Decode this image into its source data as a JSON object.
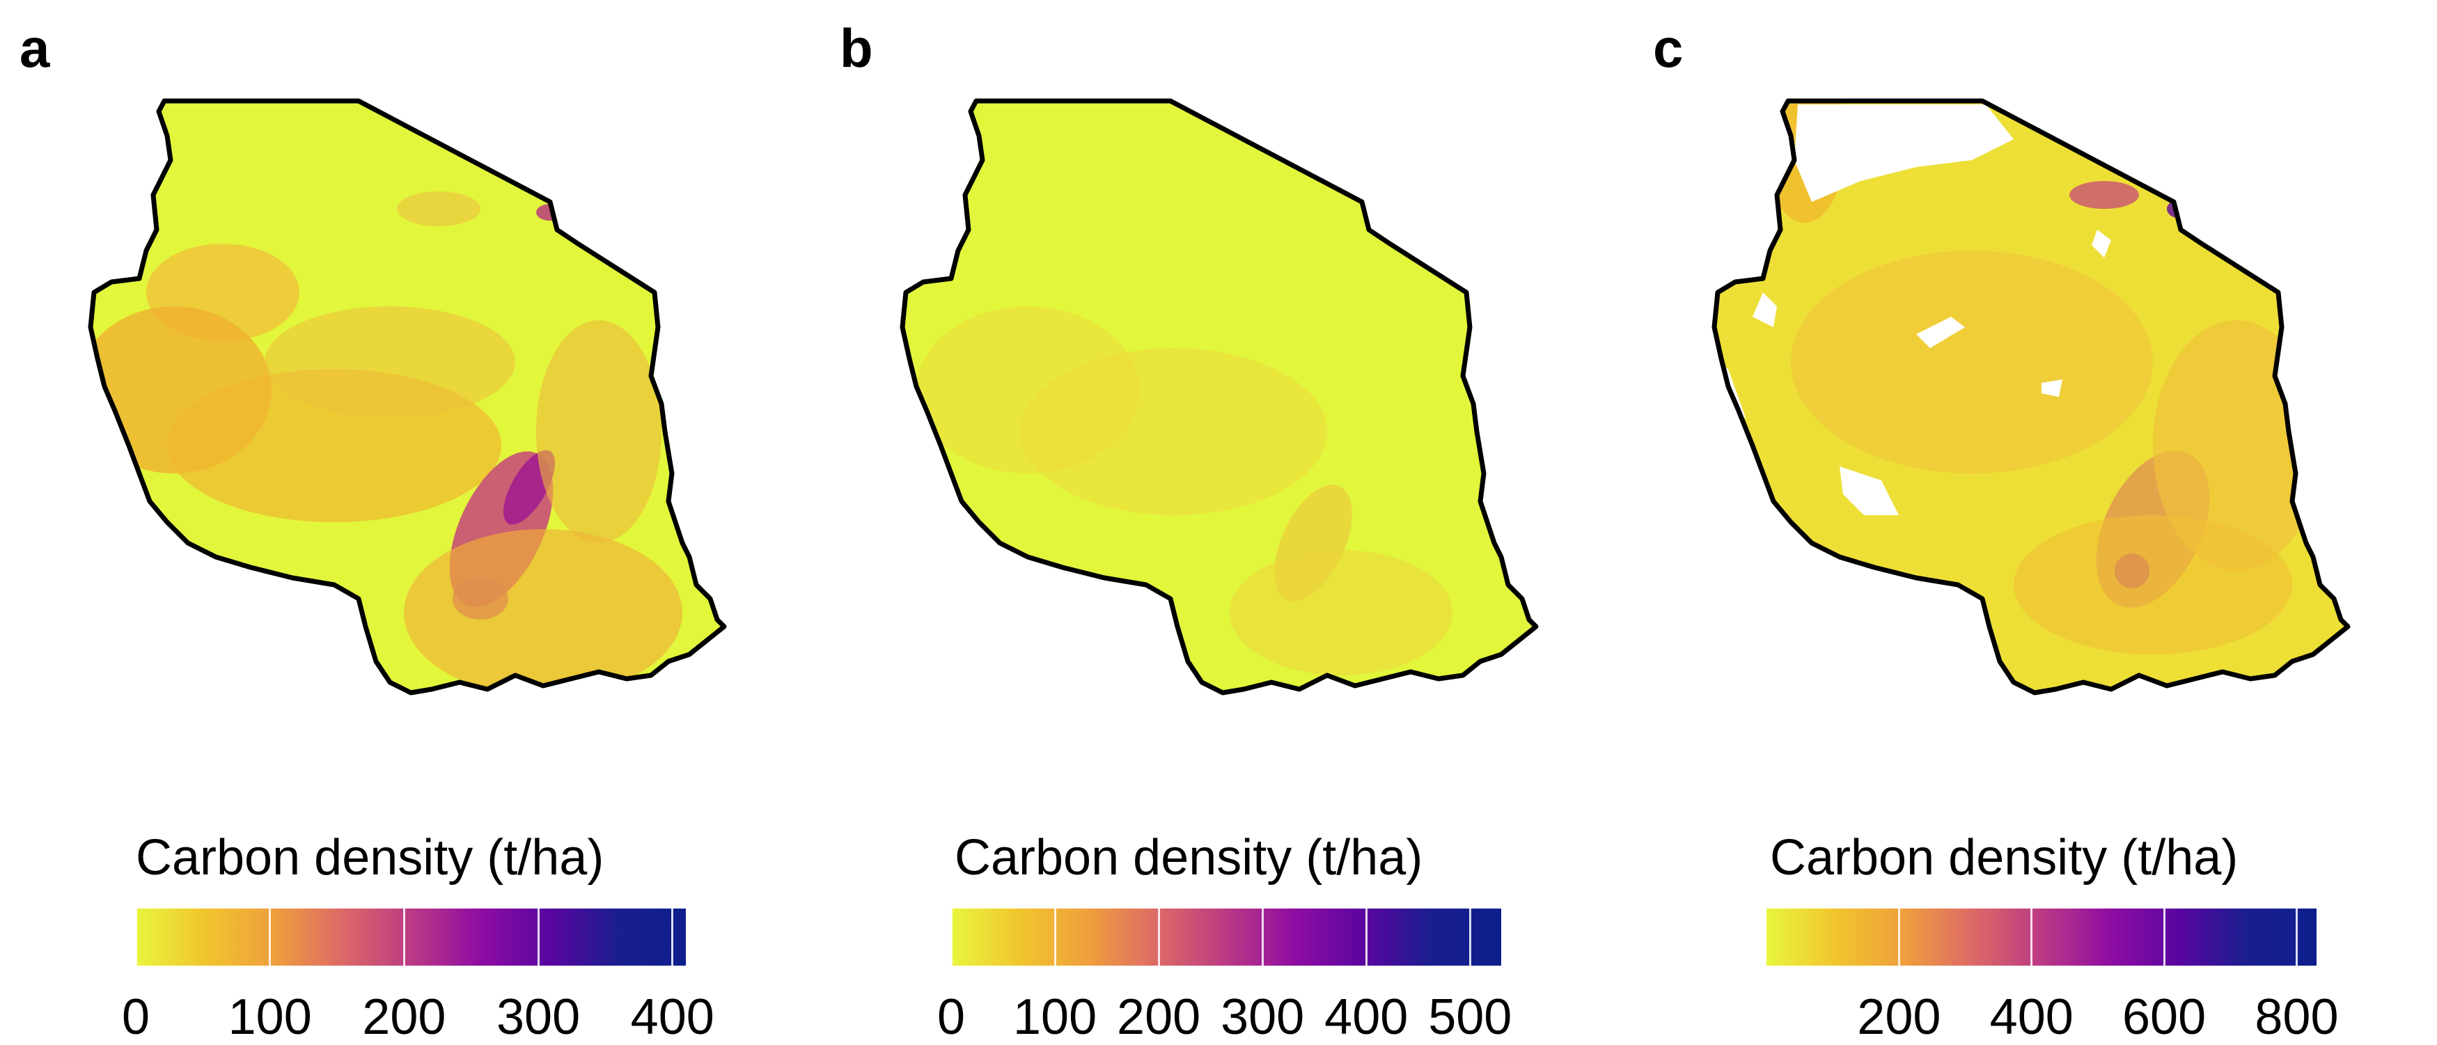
{
  "panels": [
    {
      "label": "a",
      "legend_title": "Carbon density (t/ha)",
      "colormap": "plasma (reversed)",
      "scale_max": 400,
      "ticks": [
        "0",
        "100",
        "200",
        "300",
        "400"
      ],
      "tick_values": [
        0,
        100,
        200,
        300,
        400
      ],
      "range": [
        0,
        410
      ],
      "has_nodata_areas": false
    },
    {
      "label": "b",
      "legend_title": "Carbon density (t/ha)",
      "colormap": "plasma (reversed)",
      "scale_max": 500,
      "ticks": [
        "0",
        "100",
        "200",
        "300",
        "400",
        "500"
      ],
      "tick_values": [
        0,
        100,
        200,
        300,
        400,
        500
      ],
      "range": [
        0,
        530
      ],
      "has_nodata_areas": false
    },
    {
      "label": "c",
      "legend_title": "Carbon density (t/ha)",
      "colormap": "plasma (reversed)",
      "scale_max": 800,
      "ticks": [
        "200",
        "400",
        "600",
        "800"
      ],
      "tick_values": [
        200,
        400,
        600,
        800
      ],
      "range": [
        0,
        830
      ],
      "has_nodata_areas": true
    }
  ],
  "colors": {
    "low": "#e2f63c",
    "mid_low": "#f1b32e",
    "mid": "#de6a62",
    "mid_high": "#a4158f",
    "high": "#0d1f8c",
    "border": "#000000",
    "nodata": "#ffffff"
  }
}
